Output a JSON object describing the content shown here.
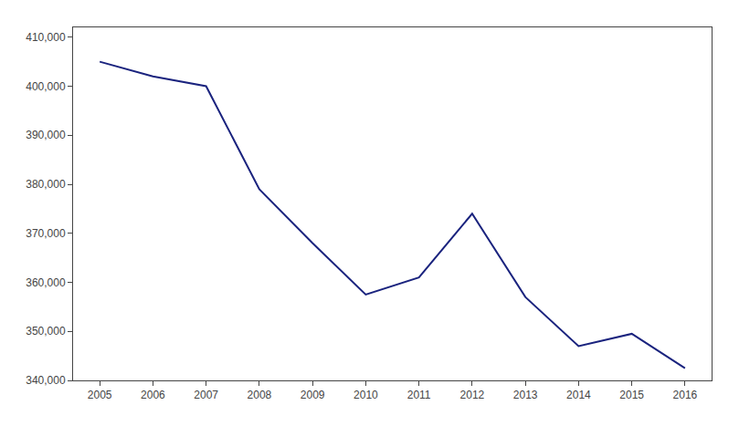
{
  "chart_data": {
    "type": "line",
    "x": [
      2005,
      2006,
      2007,
      2008,
      2009,
      2010,
      2011,
      2012,
      2013,
      2014,
      2015,
      2016
    ],
    "values": [
      405000,
      402000,
      400000,
      379000,
      368000,
      357500,
      361000,
      374000,
      357000,
      347000,
      349500,
      342500
    ],
    "color": "#1a237e",
    "xlim": [
      2004.5,
      2016.5
    ],
    "xticks": [
      2005,
      2006,
      2007,
      2008,
      2009,
      2010,
      2011,
      2012,
      2013,
      2014,
      2015,
      2016
    ],
    "ylim": [
      340000,
      412000
    ],
    "yticks": [
      {
        "value": 340000,
        "label": "340,000"
      },
      {
        "value": 350000,
        "label": "350,000"
      },
      {
        "value": 360000,
        "label": "360,000"
      },
      {
        "value": 370000,
        "label": "370,000"
      },
      {
        "value": 380000,
        "label": "380,000"
      },
      {
        "value": 390000,
        "label": "390,000"
      },
      {
        "value": 400000,
        "label": "400,000"
      },
      {
        "value": 410000,
        "label": "410,000"
      }
    ],
    "grid": false
  }
}
